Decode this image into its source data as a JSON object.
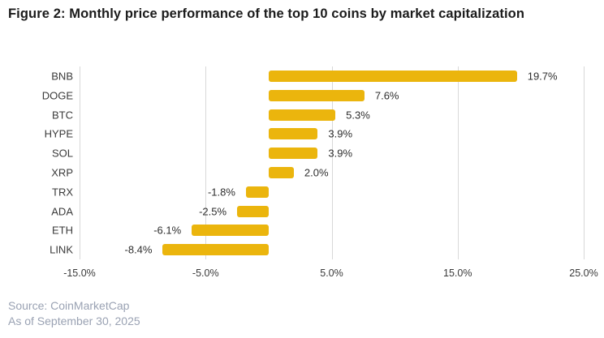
{
  "title": "Figure 2: Monthly price performance of the top 10 coins by market capitalization",
  "footer": {
    "source": "Source: CoinMarketCap",
    "as_of": "As of September 30, 2025"
  },
  "chart_data": {
    "type": "bar",
    "orientation": "horizontal",
    "title": "Figure 2: Monthly price performance of the top 10 coins by market capitalization",
    "categories": [
      "BNB",
      "DOGE",
      "BTC",
      "HYPE",
      "SOL",
      "XRP",
      "TRX",
      "ADA",
      "ETH",
      "LINK"
    ],
    "values": [
      19.7,
      7.6,
      5.3,
      3.9,
      3.9,
      2.0,
      -1.8,
      -2.5,
      -6.1,
      -8.4
    ],
    "value_labels": [
      "19.7%",
      "7.6%",
      "5.3%",
      "3.9%",
      "3.9%",
      "2.0%",
      "-1.8%",
      "-2.5%",
      "-6.1%",
      "-8.4%"
    ],
    "xlim": [
      -15,
      25
    ],
    "x_ticks": [
      -15,
      -5,
      5,
      15,
      25
    ],
    "x_tick_labels": [
      "-15.0%",
      "-5.0%",
      "5.0%",
      "15.0%",
      "25.0%"
    ],
    "grid": true,
    "legend": "none",
    "bar_color": "#EBB50D",
    "gridline_color": "#d8d8d8",
    "label_color": "#2e2e2e"
  }
}
